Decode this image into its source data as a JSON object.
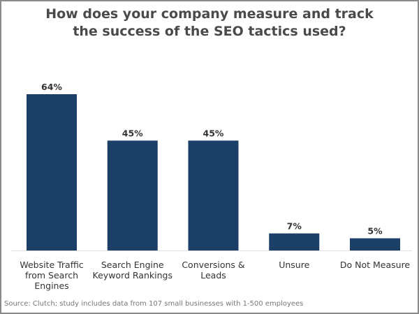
{
  "chart_data": {
    "type": "bar",
    "title_lines": [
      "How does your company measure and track",
      "the success of the SEO tactics used?"
    ],
    "categories": [
      [
        "Website Traffic",
        "from Search",
        "Engines"
      ],
      [
        "Search Engine",
        "Keyword Rankings"
      ],
      [
        "Conversions &",
        "Leads"
      ],
      [
        "Unsure"
      ],
      [
        "Do Not Measure"
      ]
    ],
    "values": [
      64,
      45,
      45,
      7,
      5
    ],
    "data_labels": [
      "64%",
      "45%",
      "45%",
      "7%",
      "5%"
    ],
    "ylim": [
      0,
      64
    ],
    "grid": false,
    "bar_color": "#1b3f66",
    "source": "Source: Clutch; study includes data from 107 small businesses with 1-500 employees"
  }
}
